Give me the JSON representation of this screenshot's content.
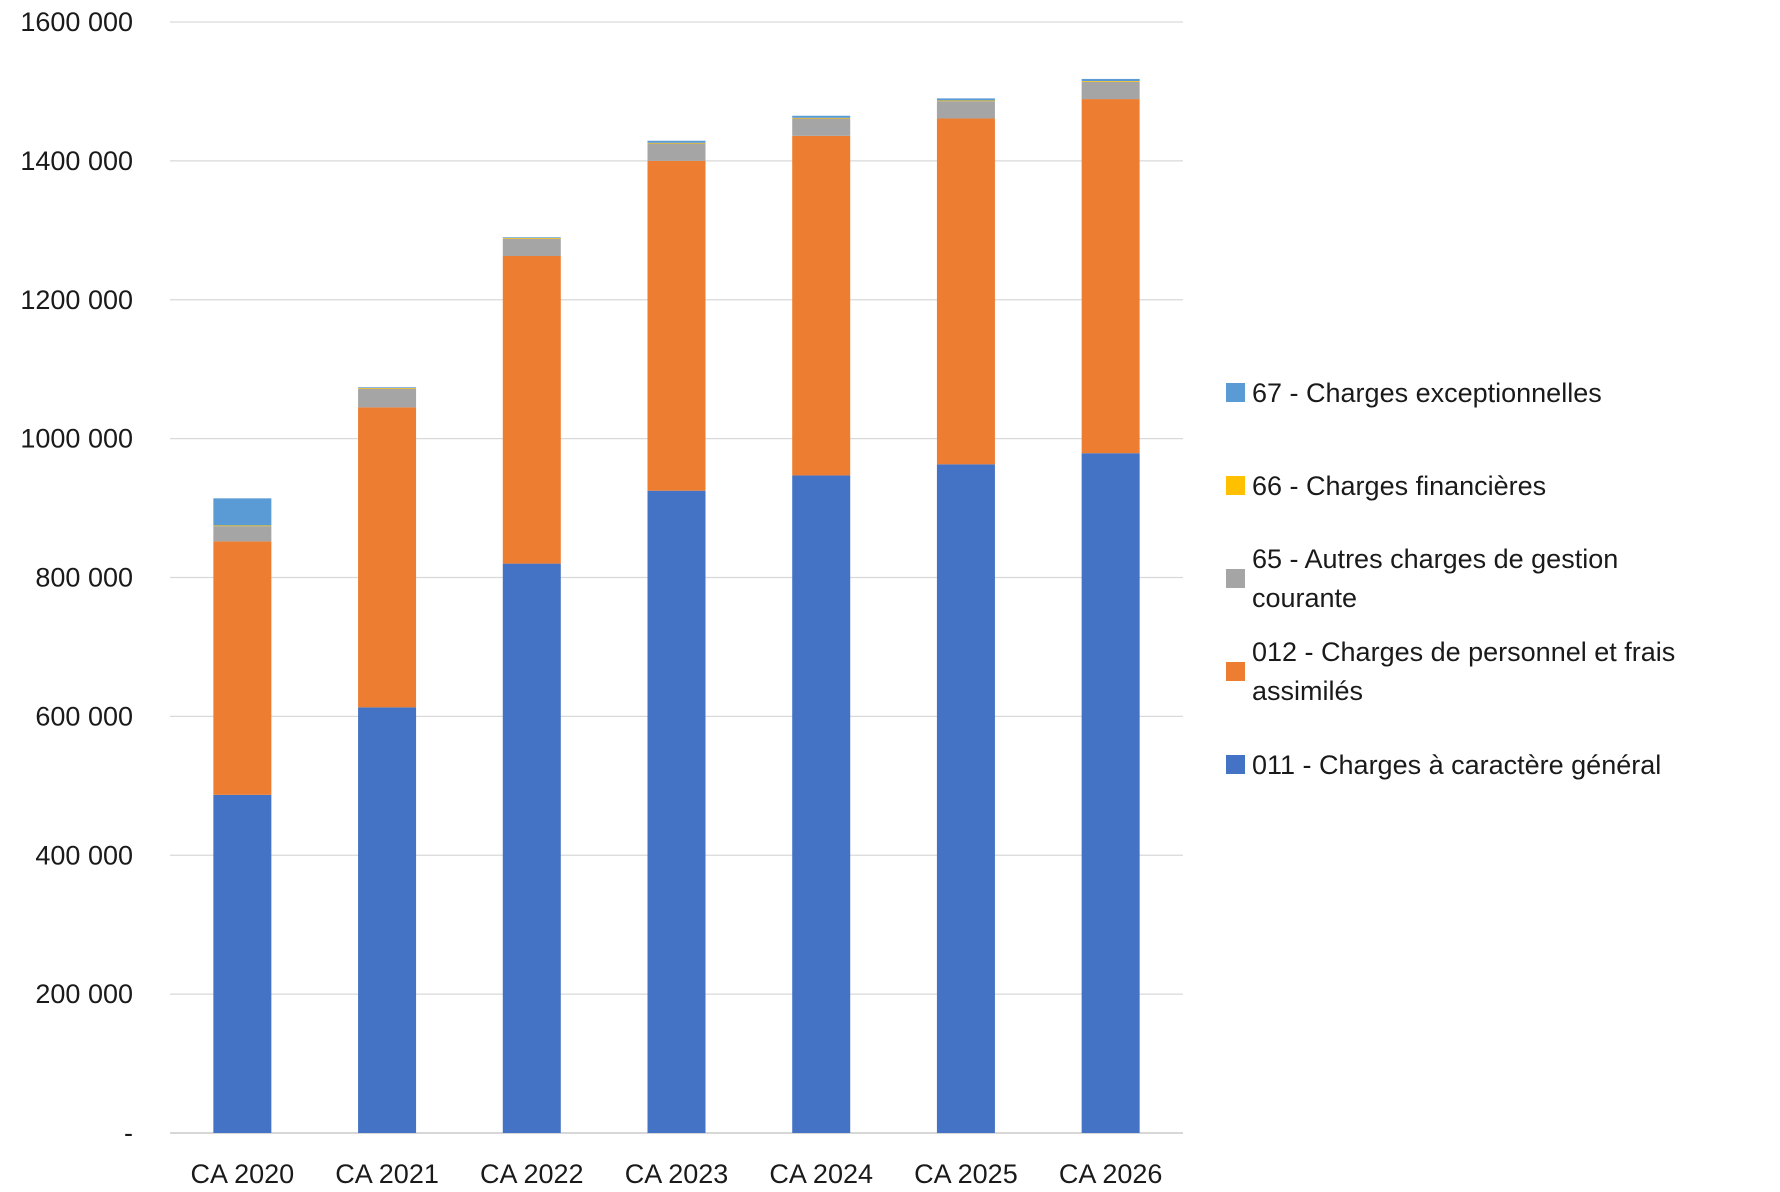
{
  "chart_data": {
    "type": "bar",
    "stacked": true,
    "title": "",
    "xlabel": "",
    "ylabel": "",
    "ylim": [
      0,
      1600000
    ],
    "yticks": [
      0,
      200000,
      400000,
      600000,
      800000,
      1000000,
      1200000,
      1400000,
      1600000
    ],
    "ytick_labels": [
      "-",
      "200 000",
      "400 000",
      "600 000",
      "800 000",
      "1000 000",
      "1200 000",
      "1400 000",
      "1600 000"
    ],
    "grid": true,
    "legend_position": "right",
    "categories": [
      "CA 2020",
      "CA 2021",
      "CA 2022",
      "CA 2023",
      "CA 2024",
      "CA 2025",
      "CA 2026"
    ],
    "series": [
      {
        "name": "011 - Charges à caractère général",
        "color": "#4472C4",
        "values": [
          487000,
          613000,
          820000,
          925000,
          947000,
          963000,
          979000
        ]
      },
      {
        "name": "012 - Charges de personnel et frais assimilés",
        "color": "#ED7D31",
        "values": [
          365000,
          432000,
          443000,
          475000,
          489000,
          498000,
          510000
        ]
      },
      {
        "name": "65 - Autres charges de gestion courante",
        "color": "#A5A5A5",
        "values": [
          22000,
          27000,
          25000,
          25000,
          25000,
          25000,
          25000
        ]
      },
      {
        "name": "66 - Charges financières",
        "color": "#FFC000",
        "values": [
          1000,
          1000,
          1000,
          1000,
          1000,
          1000,
          1000
        ]
      },
      {
        "name": "67 - Charges exceptionnelles",
        "color": "#5B9BD5",
        "values": [
          39000,
          1000,
          1000,
          3000,
          3000,
          3000,
          3000
        ]
      }
    ]
  }
}
